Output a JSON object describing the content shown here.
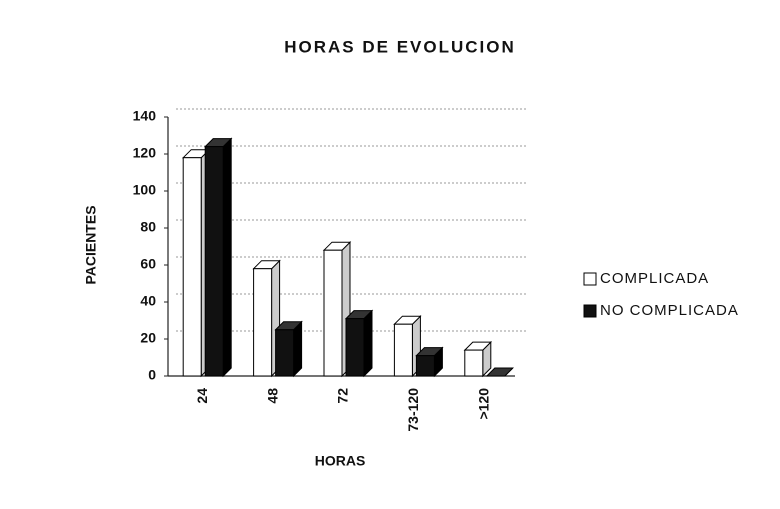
{
  "chart_data": {
    "type": "bar",
    "title": "HORAS DE EVOLUCION",
    "x_label": "HORAS",
    "y_label": "PACIENTES",
    "categories": [
      "24",
      "48",
      "72",
      "73-120",
      ">120"
    ],
    "series": [
      {
        "name": "COMPLICADA",
        "color": "#ffffff",
        "values": [
          118,
          58,
          68,
          28,
          14
        ]
      },
      {
        "name": "NO COMPLICADA",
        "color": "#111111",
        "values": [
          124,
          25,
          31,
          11,
          0
        ]
      }
    ],
    "ylim": [
      0,
      140
    ],
    "yticks": [
      0,
      20,
      40,
      60,
      80,
      100,
      120,
      140
    ],
    "grid": true
  }
}
